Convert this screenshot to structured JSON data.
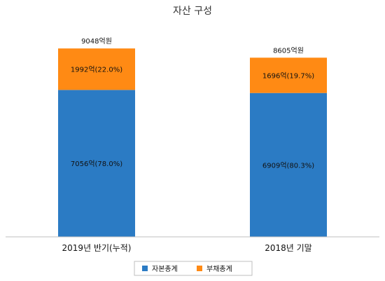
{
  "chart_data": {
    "type": "bar",
    "stacked": true,
    "title": "자산 구성",
    "categories": [
      "2019년 반기(누적)",
      "2018년 기말"
    ],
    "series": [
      {
        "name": "자본총계",
        "color": "#2b7bc4",
        "values": [
          7056,
          6909
        ],
        "labels": [
          "7056억(78.0%)",
          "6909억(80.3%)"
        ]
      },
      {
        "name": "부채총계",
        "color": "#ff8a14",
        "values": [
          1992,
          1696
        ],
        "labels": [
          "1992억(22.0%)",
          "1696억(19.7%)"
        ]
      }
    ],
    "totals": [
      9048,
      8605
    ],
    "total_labels": [
      "9048억원",
      "8605억원"
    ],
    "ylim": [
      0,
      10500
    ],
    "grid": false,
    "legend_position": "bottom"
  }
}
